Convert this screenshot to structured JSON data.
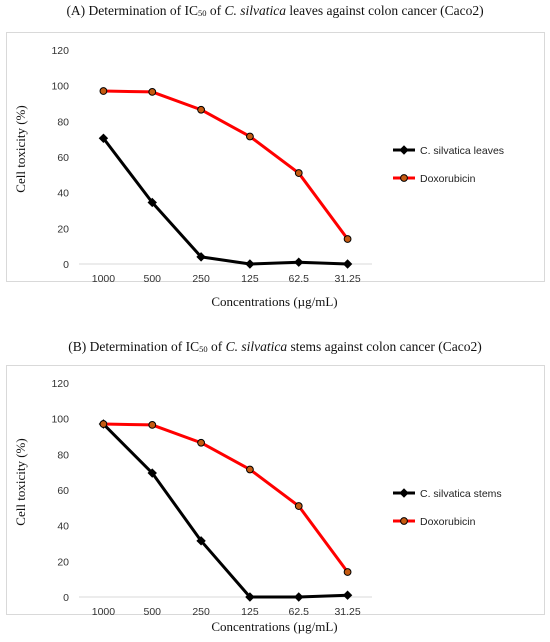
{
  "chart_data": [
    {
      "type": "line",
      "title_prefix": "(A) Determination of IC",
      "title_sub": "50",
      "title_mid": " of ",
      "title_italic": "C. silvatica",
      "title_suffix": " leaves against colon cancer (Caco2)",
      "xlabel": "Concentrations (µg/mL)",
      "ylabel": "Cell toxicity (%)",
      "categories": [
        "1000",
        "500",
        "250",
        "125",
        "62.5",
        "31.25"
      ],
      "ylim": [
        0,
        120
      ],
      "yticks": [
        0,
        20,
        40,
        60,
        80,
        100,
        120
      ],
      "grid": false,
      "legend_position": "right",
      "series": [
        {
          "name": "C. silvatica leaves",
          "color": "#000000",
          "marker": "diamond",
          "values": [
            70.5,
            34.5,
            4,
            0,
            1,
            0
          ]
        },
        {
          "name": "Doxorubicin",
          "color": "#ff0000",
          "marker": "circle",
          "values": [
            97,
            96.5,
            86.5,
            71.5,
            51,
            14
          ]
        }
      ]
    },
    {
      "type": "line",
      "title_prefix": "(B) Determination of IC",
      "title_sub": "50",
      "title_mid": " of ",
      "title_italic": "C. silvatica",
      "title_suffix": " stems against colon cancer (Caco2)",
      "xlabel": "Concentrations (µg/mL)",
      "ylabel": "Cell toxicity  (%)",
      "categories": [
        "1000",
        "500",
        "250",
        "125",
        "62.5",
        "31.25"
      ],
      "ylim": [
        0,
        120
      ],
      "yticks": [
        0,
        20,
        40,
        60,
        80,
        100,
        120
      ],
      "grid": false,
      "legend_position": "right",
      "series": [
        {
          "name": "C. silvatica stems",
          "color": "#000000",
          "marker": "diamond",
          "values": [
            97,
            69.5,
            31.5,
            0,
            0,
            1
          ]
        },
        {
          "name": "Doxorubicin",
          "color": "#ff0000",
          "marker": "circle",
          "values": [
            97,
            96.5,
            86.5,
            71.5,
            51,
            14
          ]
        }
      ]
    }
  ]
}
